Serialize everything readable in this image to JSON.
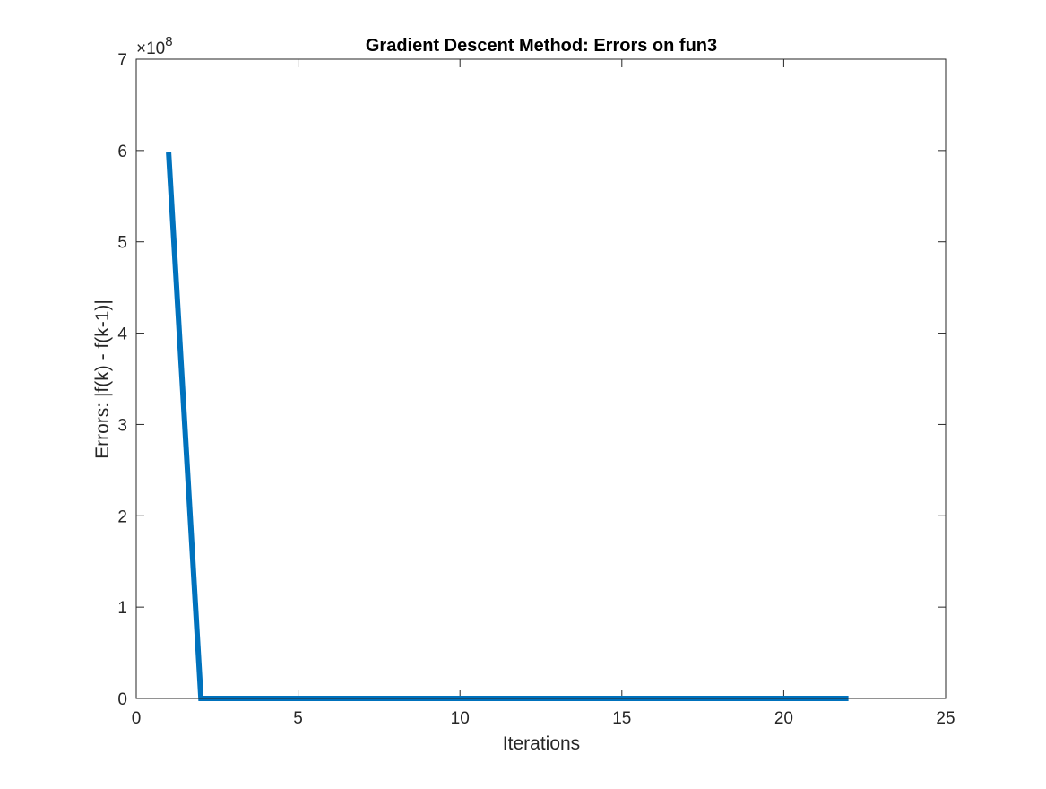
{
  "chart_data": {
    "type": "line",
    "title": "Gradient Descent Method: Errors on fun3",
    "xlabel": "Iterations",
    "ylabel": "Errors: |f(k) - f(k-1)|",
    "xlim": [
      0,
      25
    ],
    "ylim": [
      0,
      7
    ],
    "xticks": [
      0,
      5,
      10,
      15,
      20,
      25
    ],
    "yticks": [
      0,
      1,
      2,
      3,
      4,
      5,
      6,
      7
    ],
    "y_exponent_base": "×10",
    "y_exponent_power": "8",
    "grid": false,
    "series": [
      {
        "color": "#0072BD",
        "x": [
          1,
          2,
          3,
          4,
          5,
          6,
          7,
          8,
          9,
          10,
          11,
          12,
          13,
          14,
          15,
          16,
          17,
          18,
          19,
          20,
          21,
          22
        ],
        "y": [
          5.98,
          0,
          0,
          0,
          0,
          0,
          0,
          0,
          0,
          0,
          0,
          0,
          0,
          0,
          0,
          0,
          0,
          0,
          0,
          0,
          0,
          0
        ]
      }
    ]
  }
}
